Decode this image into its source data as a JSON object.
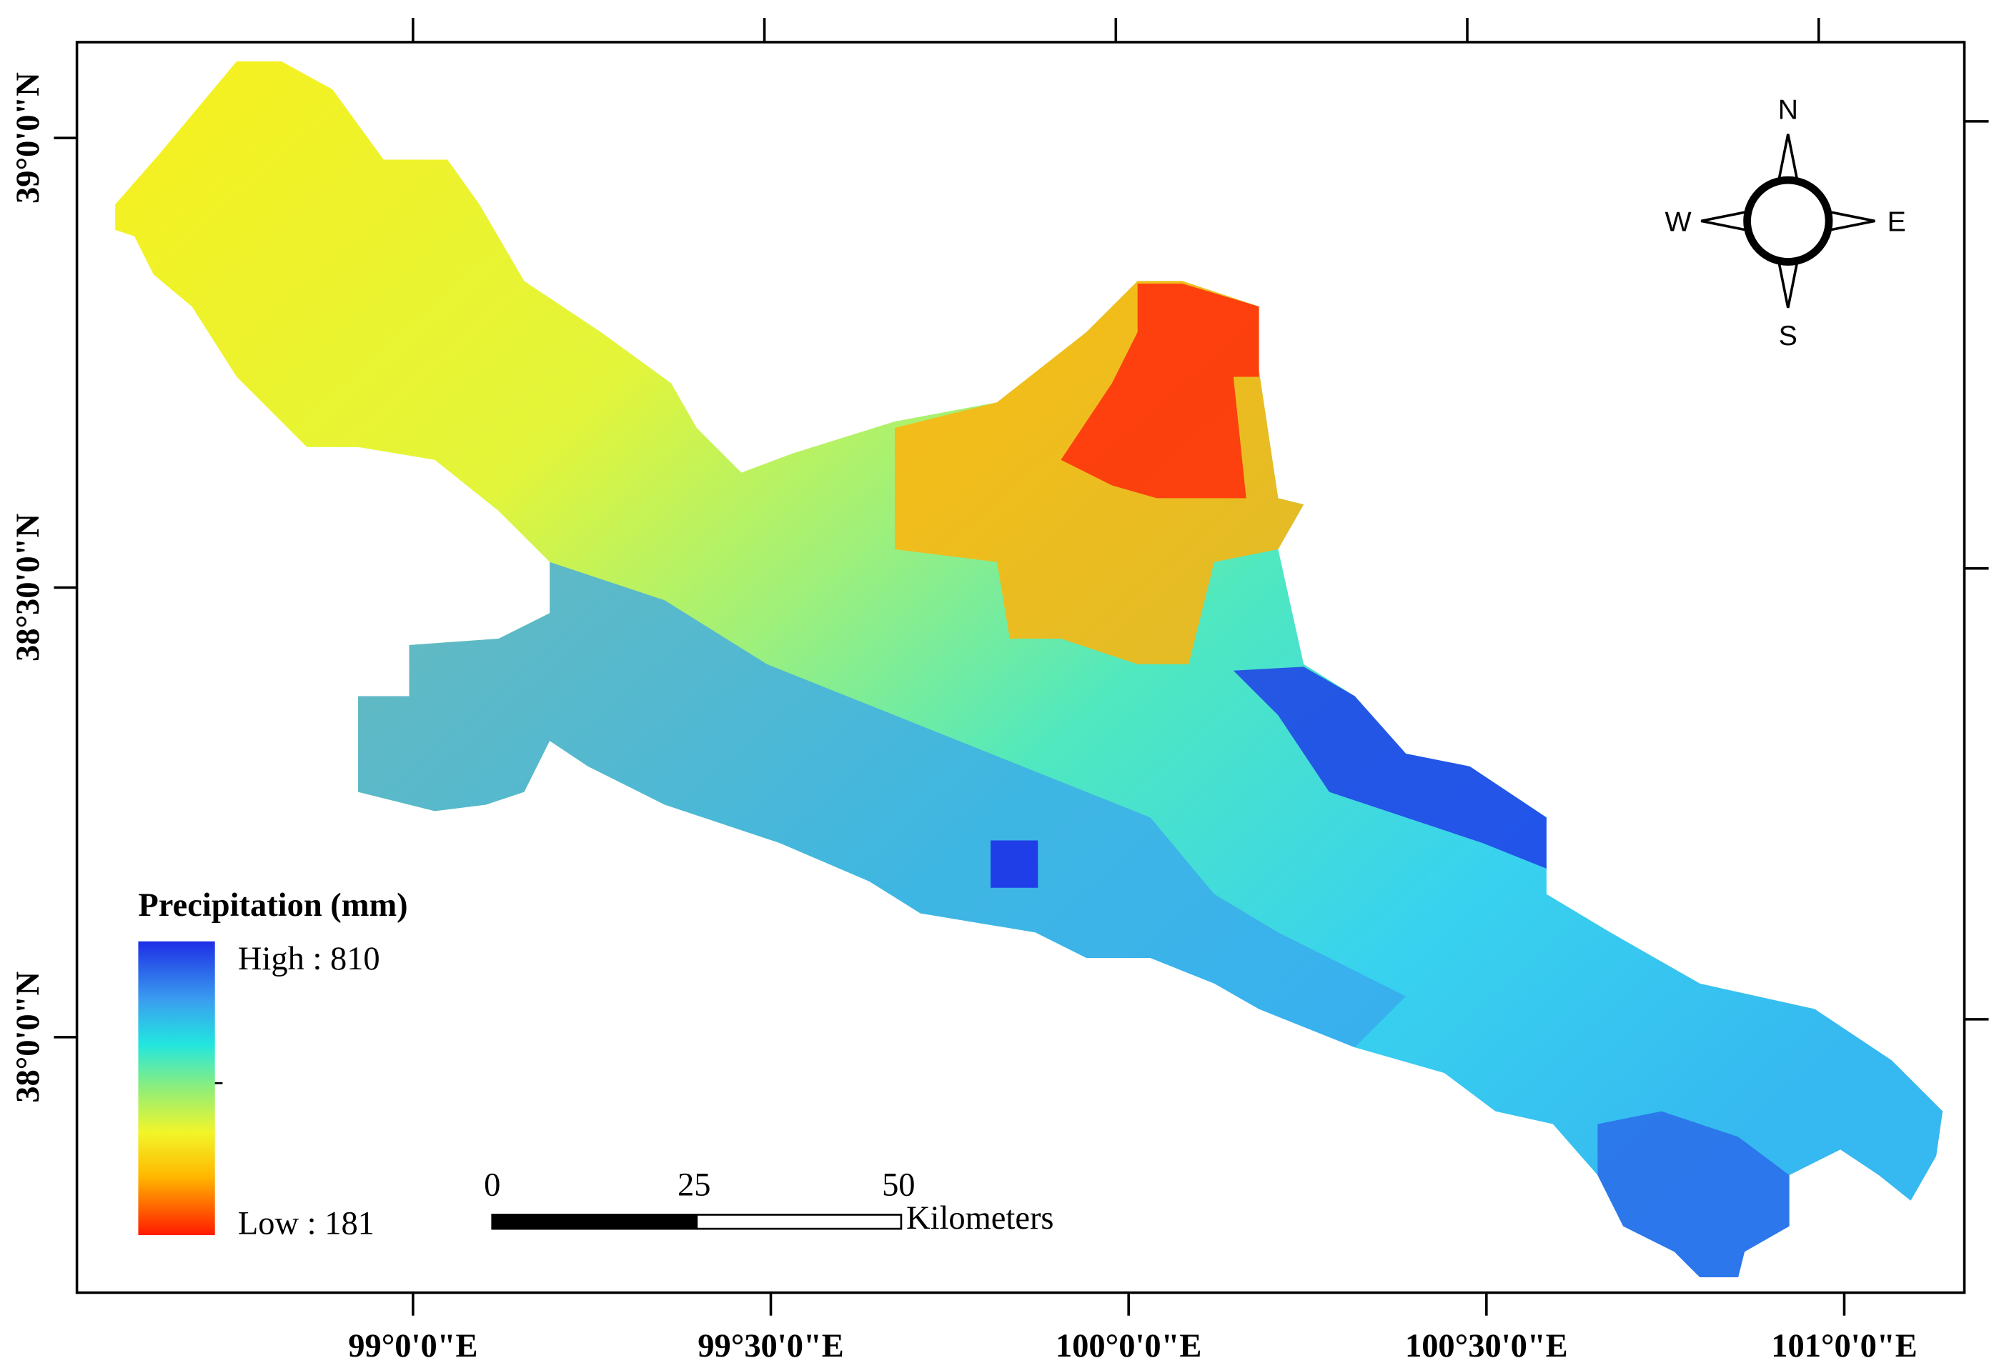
{
  "map": {
    "lon_labels": [
      "99°0'0\"E",
      "99°30'0\"E",
      "100°0'0\"E",
      "100°30'0\"E",
      "101°0'0\"E"
    ],
    "lat_labels": [
      "39°0'0\"N",
      "38°30'0\"N",
      "38°0'0\"N"
    ],
    "legend": {
      "title": "Precipitation (mm)",
      "high": "High : 810",
      "low": "Low : 181"
    },
    "scale_bar": {
      "labels": [
        "0",
        "25",
        "50"
      ],
      "unit": "Kilometers"
    },
    "compass": {
      "n": "N",
      "s": "S",
      "e": "E",
      "w": "W"
    }
  }
}
